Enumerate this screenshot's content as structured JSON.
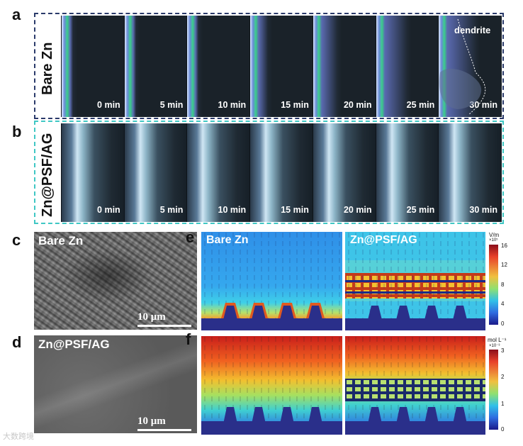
{
  "panels": {
    "a": {
      "letter": "a",
      "side_label": "Bare Zn",
      "annotation": "dendrite",
      "frame_labels": [
        "0 min",
        "5 min",
        "10 min",
        "15 min",
        "20 min",
        "25 min",
        "30 min"
      ],
      "frame_color": "#2a3a6a"
    },
    "b": {
      "letter": "b",
      "side_label": "Zn@PSF/AG",
      "frame_labels": [
        "0 min",
        "5 min",
        "10 min",
        "15 min",
        "20 min",
        "25 min",
        "30 min"
      ],
      "frame_color": "#3fc7c4"
    },
    "c": {
      "letter": "c",
      "label": "Bare Zn",
      "scale": "10 μm"
    },
    "d": {
      "letter": "d",
      "label": "Zn@PSF/AG",
      "scale": "10 μm"
    },
    "e": {
      "letter": "e",
      "left_label": "Bare Zn",
      "right_label": "Zn@PSF/AG",
      "colorbar_unit": "V/m",
      "colorbar_exp": "×10⁵",
      "ticks": [
        "16",
        "12",
        "8",
        "4",
        "0"
      ]
    },
    "f": {
      "letter": "f",
      "colorbar_unit": "mol L⁻¹",
      "colorbar_exp": "×10⁻³",
      "ticks": [
        "3",
        "2",
        "1",
        "0"
      ]
    }
  },
  "watermark": "大数跨境"
}
